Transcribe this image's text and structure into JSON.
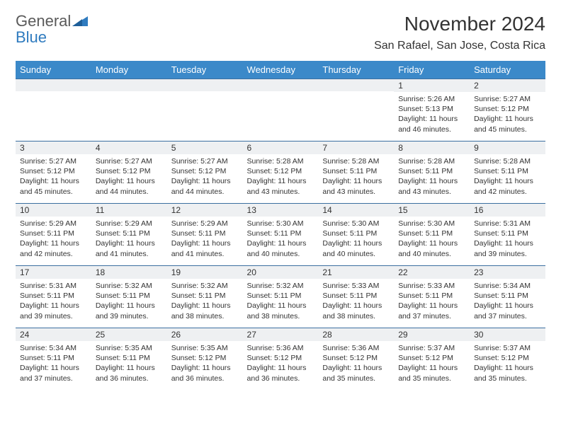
{
  "brand": {
    "word1": "General",
    "word2": "Blue"
  },
  "title": "November 2024",
  "location": "San Rafael, San Jose, Costa Rica",
  "colors": {
    "header_bg": "#3b89c9",
    "header_text": "#ffffff",
    "cell_border": "#3b6fa0",
    "daynum_bg": "#eef0f2",
    "text": "#333333",
    "brand_gray": "#5a5a5a",
    "brand_blue": "#2f7bbf"
  },
  "day_headers": [
    "Sunday",
    "Monday",
    "Tuesday",
    "Wednesday",
    "Thursday",
    "Friday",
    "Saturday"
  ],
  "weeks": [
    [
      {
        "day": "",
        "lines": []
      },
      {
        "day": "",
        "lines": []
      },
      {
        "day": "",
        "lines": []
      },
      {
        "day": "",
        "lines": []
      },
      {
        "day": "",
        "lines": []
      },
      {
        "day": "1",
        "lines": [
          "Sunrise: 5:26 AM",
          "Sunset: 5:13 PM",
          "Daylight: 11 hours and 46 minutes."
        ]
      },
      {
        "day": "2",
        "lines": [
          "Sunrise: 5:27 AM",
          "Sunset: 5:12 PM",
          "Daylight: 11 hours and 45 minutes."
        ]
      }
    ],
    [
      {
        "day": "3",
        "lines": [
          "Sunrise: 5:27 AM",
          "Sunset: 5:12 PM",
          "Daylight: 11 hours and 45 minutes."
        ]
      },
      {
        "day": "4",
        "lines": [
          "Sunrise: 5:27 AM",
          "Sunset: 5:12 PM",
          "Daylight: 11 hours and 44 minutes."
        ]
      },
      {
        "day": "5",
        "lines": [
          "Sunrise: 5:27 AM",
          "Sunset: 5:12 PM",
          "Daylight: 11 hours and 44 minutes."
        ]
      },
      {
        "day": "6",
        "lines": [
          "Sunrise: 5:28 AM",
          "Sunset: 5:12 PM",
          "Daylight: 11 hours and 43 minutes."
        ]
      },
      {
        "day": "7",
        "lines": [
          "Sunrise: 5:28 AM",
          "Sunset: 5:11 PM",
          "Daylight: 11 hours and 43 minutes."
        ]
      },
      {
        "day": "8",
        "lines": [
          "Sunrise: 5:28 AM",
          "Sunset: 5:11 PM",
          "Daylight: 11 hours and 43 minutes."
        ]
      },
      {
        "day": "9",
        "lines": [
          "Sunrise: 5:28 AM",
          "Sunset: 5:11 PM",
          "Daylight: 11 hours and 42 minutes."
        ]
      }
    ],
    [
      {
        "day": "10",
        "lines": [
          "Sunrise: 5:29 AM",
          "Sunset: 5:11 PM",
          "Daylight: 11 hours and 42 minutes."
        ]
      },
      {
        "day": "11",
        "lines": [
          "Sunrise: 5:29 AM",
          "Sunset: 5:11 PM",
          "Daylight: 11 hours and 41 minutes."
        ]
      },
      {
        "day": "12",
        "lines": [
          "Sunrise: 5:29 AM",
          "Sunset: 5:11 PM",
          "Daylight: 11 hours and 41 minutes."
        ]
      },
      {
        "day": "13",
        "lines": [
          "Sunrise: 5:30 AM",
          "Sunset: 5:11 PM",
          "Daylight: 11 hours and 40 minutes."
        ]
      },
      {
        "day": "14",
        "lines": [
          "Sunrise: 5:30 AM",
          "Sunset: 5:11 PM",
          "Daylight: 11 hours and 40 minutes."
        ]
      },
      {
        "day": "15",
        "lines": [
          "Sunrise: 5:30 AM",
          "Sunset: 5:11 PM",
          "Daylight: 11 hours and 40 minutes."
        ]
      },
      {
        "day": "16",
        "lines": [
          "Sunrise: 5:31 AM",
          "Sunset: 5:11 PM",
          "Daylight: 11 hours and 39 minutes."
        ]
      }
    ],
    [
      {
        "day": "17",
        "lines": [
          "Sunrise: 5:31 AM",
          "Sunset: 5:11 PM",
          "Daylight: 11 hours and 39 minutes."
        ]
      },
      {
        "day": "18",
        "lines": [
          "Sunrise: 5:32 AM",
          "Sunset: 5:11 PM",
          "Daylight: 11 hours and 39 minutes."
        ]
      },
      {
        "day": "19",
        "lines": [
          "Sunrise: 5:32 AM",
          "Sunset: 5:11 PM",
          "Daylight: 11 hours and 38 minutes."
        ]
      },
      {
        "day": "20",
        "lines": [
          "Sunrise: 5:32 AM",
          "Sunset: 5:11 PM",
          "Daylight: 11 hours and 38 minutes."
        ]
      },
      {
        "day": "21",
        "lines": [
          "Sunrise: 5:33 AM",
          "Sunset: 5:11 PM",
          "Daylight: 11 hours and 38 minutes."
        ]
      },
      {
        "day": "22",
        "lines": [
          "Sunrise: 5:33 AM",
          "Sunset: 5:11 PM",
          "Daylight: 11 hours and 37 minutes."
        ]
      },
      {
        "day": "23",
        "lines": [
          "Sunrise: 5:34 AM",
          "Sunset: 5:11 PM",
          "Daylight: 11 hours and 37 minutes."
        ]
      }
    ],
    [
      {
        "day": "24",
        "lines": [
          "Sunrise: 5:34 AM",
          "Sunset: 5:11 PM",
          "Daylight: 11 hours and 37 minutes."
        ]
      },
      {
        "day": "25",
        "lines": [
          "Sunrise: 5:35 AM",
          "Sunset: 5:11 PM",
          "Daylight: 11 hours and 36 minutes."
        ]
      },
      {
        "day": "26",
        "lines": [
          "Sunrise: 5:35 AM",
          "Sunset: 5:12 PM",
          "Daylight: 11 hours and 36 minutes."
        ]
      },
      {
        "day": "27",
        "lines": [
          "Sunrise: 5:36 AM",
          "Sunset: 5:12 PM",
          "Daylight: 11 hours and 36 minutes."
        ]
      },
      {
        "day": "28",
        "lines": [
          "Sunrise: 5:36 AM",
          "Sunset: 5:12 PM",
          "Daylight: 11 hours and 35 minutes."
        ]
      },
      {
        "day": "29",
        "lines": [
          "Sunrise: 5:37 AM",
          "Sunset: 5:12 PM",
          "Daylight: 11 hours and 35 minutes."
        ]
      },
      {
        "day": "30",
        "lines": [
          "Sunrise: 5:37 AM",
          "Sunset: 5:12 PM",
          "Daylight: 11 hours and 35 minutes."
        ]
      }
    ]
  ]
}
